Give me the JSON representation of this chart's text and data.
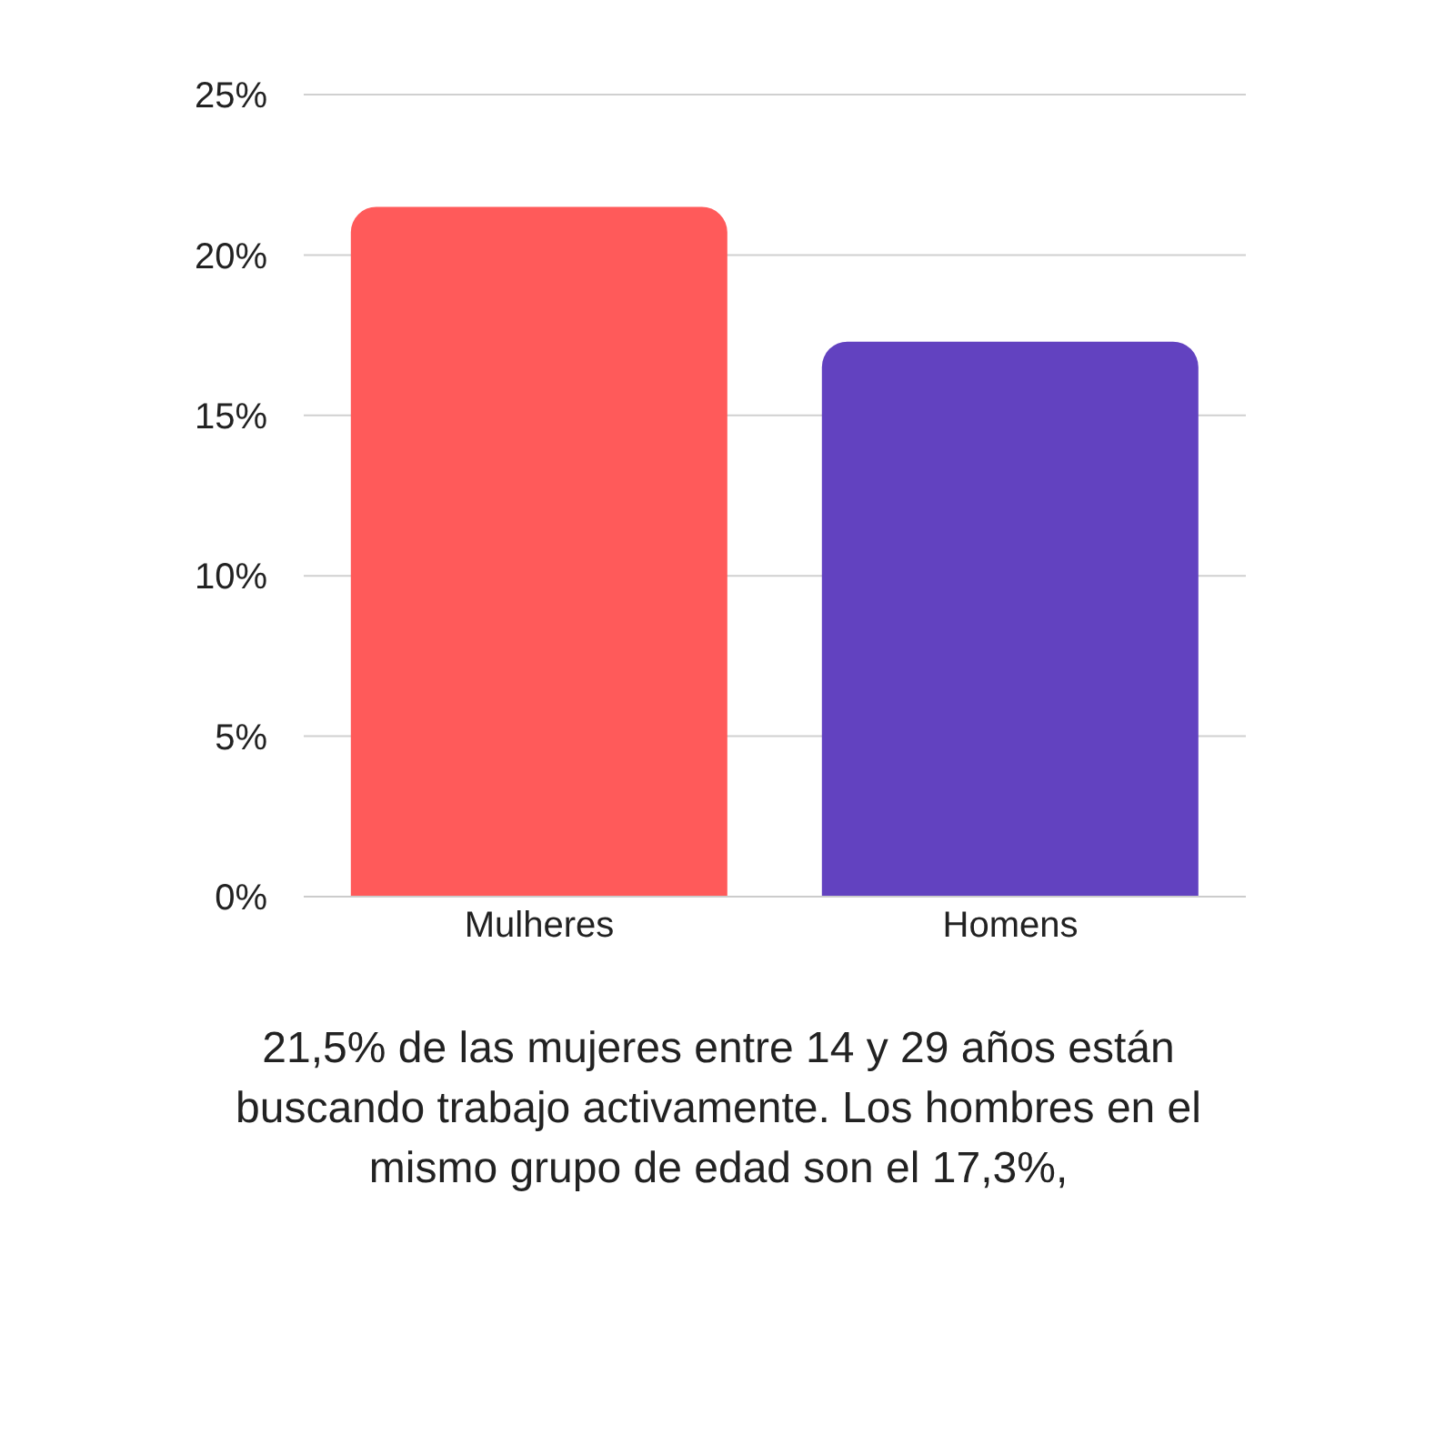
{
  "chart_data": {
    "type": "bar",
    "categories": [
      "Mulheres",
      "Homens"
    ],
    "values": [
      21.5,
      17.3
    ],
    "colors": [
      "#ff5a5a",
      "#6242c0"
    ],
    "ylim": [
      0,
      25
    ],
    "yticks": [
      {
        "value": 0,
        "label": "0%"
      },
      {
        "value": 5,
        "label": "5%"
      },
      {
        "value": 10,
        "label": "10%"
      },
      {
        "value": 15,
        "label": "15%"
      },
      {
        "value": 20,
        "label": "20%"
      },
      {
        "value": 25,
        "label": "25%"
      }
    ],
    "grid": "y",
    "legend": false,
    "annotations": [
      "21,5% de las mujeres entre 14 y 29 años están buscando trabajo activamente. Los hombres en el mismo grupo de edad son el 17,3%,"
    ]
  }
}
